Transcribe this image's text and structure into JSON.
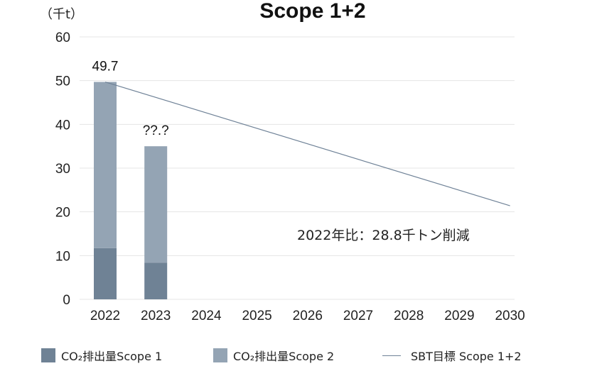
{
  "chart_data": {
    "type": "bar",
    "title": "Scope 1+2",
    "unit_label": "（千t）",
    "ylim": [
      0,
      60
    ],
    "yticks": [
      "0",
      "10",
      "20",
      "30",
      "40",
      "50",
      "60"
    ],
    "categories": [
      "2022",
      "2023",
      "2024",
      "2025",
      "2026",
      "2027",
      "2028",
      "2029",
      "2030"
    ],
    "stacked": true,
    "grid": true,
    "series": [
      {
        "name": "CO₂排出量Scope 1",
        "color": "#6f8295",
        "values": [
          11.7,
          8.4,
          null,
          null,
          null,
          null,
          null,
          null,
          null
        ]
      },
      {
        "name": "CO₂排出量Scope 2",
        "color": "#94a4b4",
        "values": [
          38.0,
          26.6,
          null,
          null,
          null,
          null,
          null,
          null,
          null
        ]
      }
    ],
    "target_line": {
      "name": "SBT目標 Scope 1+2",
      "color": "#6f8297",
      "x": [
        "2022",
        "2030"
      ],
      "y": [
        49.7,
        21.4
      ]
    },
    "data_labels": [
      {
        "category": "2022",
        "text": "49.7"
      },
      {
        "category": "2023",
        "text": "??.?"
      }
    ],
    "annotation": "2022年比：28.8千トン削減",
    "legend_position": "bottom"
  }
}
